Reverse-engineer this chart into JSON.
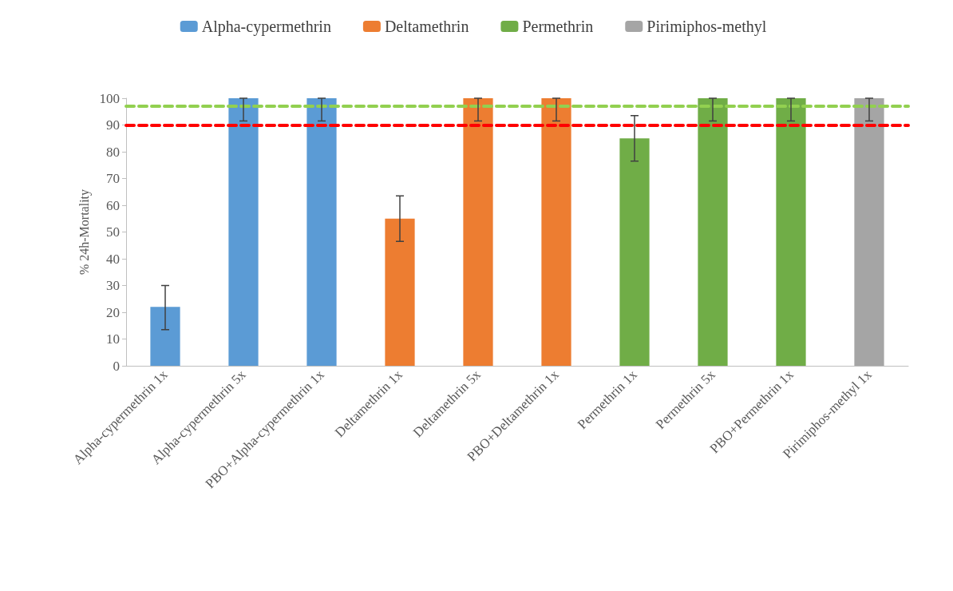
{
  "chart_data": {
    "type": "bar",
    "ylabel": "% 24h-Mortality",
    "categories": [
      "Alpha-cypermethrin 1x",
      "Alpha-cypermethrin 5x",
      "PBO+Alpha-cypermethrin 1x",
      "Deltamethrin 1x",
      "Deltamethrin 5x",
      "PBO+Deltamethrin 1x",
      "Permethrin 1x",
      "Permethrin 5x",
      "PBO+Permethrin 1x",
      "Pirimiphos-methyl 1x"
    ],
    "stacked": true,
    "series": [
      {
        "name": "Alpha-cypermethrin",
        "color": "#5b9bd5",
        "values": [
          22,
          100,
          100,
          null,
          null,
          null,
          null,
          null,
          null,
          null
        ],
        "errors": [
          [
            13.5,
            30
          ],
          [
            91.5,
            100
          ],
          [
            91.5,
            100
          ],
          null,
          null,
          null,
          null,
          null,
          null,
          null
        ]
      },
      {
        "name": "Deltamethrin",
        "color": "#ed7d31",
        "values": [
          null,
          null,
          null,
          55,
          100,
          100,
          null,
          null,
          null,
          null
        ],
        "errors": [
          null,
          null,
          null,
          [
            46.5,
            63.5
          ],
          [
            91.5,
            100
          ],
          [
            91.5,
            100
          ],
          null,
          null,
          null,
          null
        ]
      },
      {
        "name": "Permethrin",
        "color": "#70ad47",
        "values": [
          null,
          null,
          null,
          null,
          null,
          null,
          85,
          100,
          100,
          null
        ],
        "errors": [
          null,
          null,
          null,
          null,
          null,
          null,
          [
            76.5,
            93.5
          ],
          [
            91.5,
            100
          ],
          [
            91.5,
            100
          ],
          null
        ]
      },
      {
        "name": "Pirimiphos-methyl",
        "color": "#a5a5a5",
        "values": [
          null,
          null,
          null,
          null,
          null,
          null,
          null,
          null,
          null,
          100
        ],
        "errors": [
          null,
          null,
          null,
          null,
          null,
          null,
          null,
          null,
          null,
          [
            91.5,
            100
          ]
        ]
      }
    ],
    "ref_lines": [
      {
        "axis": "y",
        "value": 90,
        "color": "#ff0000",
        "line_style": "dashed"
      },
      {
        "axis": "y",
        "value": 97,
        "color": "#92d050",
        "line_style": "dashed"
      }
    ],
    "ylim": [
      0,
      100
    ],
    "yticks": [
      0,
      10,
      20,
      30,
      40,
      50,
      60,
      70,
      80,
      90,
      100
    ],
    "grid": false,
    "legend": "top"
  }
}
